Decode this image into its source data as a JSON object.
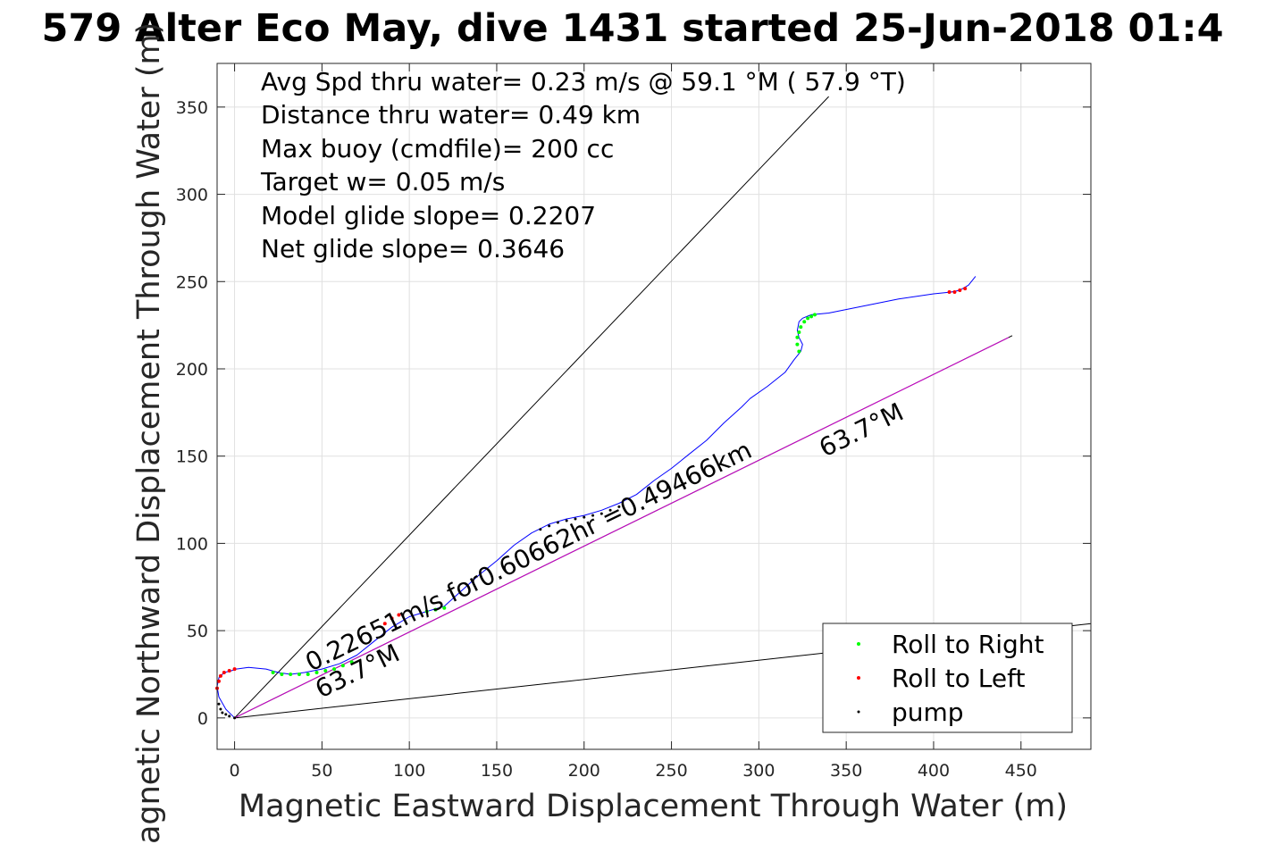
{
  "chart_data": {
    "type": "line",
    "title": "579 Alter Eco May, dive 1431 started 25-Jun-2018 01:4",
    "xlabel": "Magnetic Eastward Displacement Through Water (m)",
    "ylabel": "Magnetic Northward Displacement Through Water (m)",
    "xlim": [
      -10,
      490
    ],
    "ylim": [
      -18,
      375
    ],
    "xticks": [
      0,
      50,
      100,
      150,
      200,
      250,
      300,
      350,
      400,
      450
    ],
    "yticks": [
      0,
      50,
      100,
      150,
      200,
      250,
      300,
      350
    ],
    "grid": true,
    "stats_text": [
      "Avg Spd thru water=  0.23 m/s @  59.1 °M ( 57.9 °T)",
      "Distance thru water=  0.49 km",
      "Max buoy (cmdfile)= 200 cc",
      "Target w= 0.05 m/s",
      "Model glide slope= 0.2207",
      "Net glide slope= 0.3646"
    ],
    "annotations": [
      "0.22651m/s for0.60662hr =0.49466km",
      "63.7°M",
      "63.7°M"
    ],
    "reference_lines": [
      {
        "color": "#000000",
        "x": [
          0,
          340
        ],
        "y": [
          0,
          356
        ]
      },
      {
        "color": "#000000",
        "x": [
          0,
          445
        ],
        "y": [
          0,
          219
        ]
      },
      {
        "color": "#000000",
        "x": [
          0,
          490
        ],
        "y": [
          0,
          54
        ]
      },
      {
        "color": "#cc00cc",
        "x": [
          0,
          443
        ],
        "y": [
          0,
          218
        ]
      }
    ],
    "track": {
      "color": "#0000ff",
      "x": [
        0,
        -5,
        -9,
        -10,
        -9,
        -6,
        -2,
        1,
        8,
        18,
        25,
        32,
        40,
        50,
        60,
        70,
        80,
        90,
        100,
        110,
        120,
        130,
        140,
        150,
        160,
        170,
        180,
        190,
        200,
        210,
        220,
        230,
        240,
        250,
        260,
        270,
        280,
        290,
        295,
        305,
        315,
        320,
        324,
        325,
        323,
        322,
        323,
        325,
        330,
        340,
        360,
        380,
        400,
        410,
        415,
        420,
        424
      ],
      "y": [
        0,
        5,
        12,
        18,
        23,
        26,
        27,
        28,
        29,
        28,
        26,
        25,
        26,
        28,
        31,
        36,
        44,
        52,
        58,
        61,
        64,
        73,
        82,
        90,
        99,
        106,
        111,
        114,
        116,
        119,
        123,
        128,
        136,
        143,
        151,
        159,
        169,
        178,
        183,
        190,
        198,
        205,
        210,
        214,
        218,
        222,
        227,
        229,
        231,
        232,
        236,
        240,
        243,
        244,
        245,
        248,
        253
      ]
    },
    "series": [
      {
        "name": "Roll to Right",
        "color": "#00ff00",
        "x": [
          22,
          27,
          32,
          37,
          42,
          47,
          52,
          57,
          62,
          67,
          110,
          115,
          120,
          323,
          322,
          322,
          323,
          324,
          326,
          328,
          330,
          332
        ],
        "y": [
          26,
          25,
          25,
          25,
          25,
          26,
          27,
          28,
          30,
          32,
          61,
          62,
          63,
          210,
          214,
          218,
          221,
          224,
          227,
          229,
          230,
          231
        ]
      },
      {
        "name": "Roll to Left",
        "color": "#ff0000",
        "x": [
          -10,
          -9,
          -8,
          -6,
          -3,
          0,
          86,
          90,
          94,
          409,
          412,
          415,
          418
        ],
        "y": [
          17,
          21,
          24,
          26,
          27,
          28,
          54,
          57,
          59,
          244,
          244,
          245,
          246
        ]
      },
      {
        "name": "pump",
        "color": "#000000",
        "x": [
          -9,
          -8,
          -7,
          -5,
          -3,
          0,
          175,
          180,
          185,
          190,
          195,
          200,
          205,
          210,
          215,
          220
        ],
        "y": [
          8,
          5,
          3,
          2,
          1,
          0,
          108,
          110,
          112,
          113,
          114,
          115,
          116,
          117,
          119,
          121
        ]
      }
    ]
  }
}
